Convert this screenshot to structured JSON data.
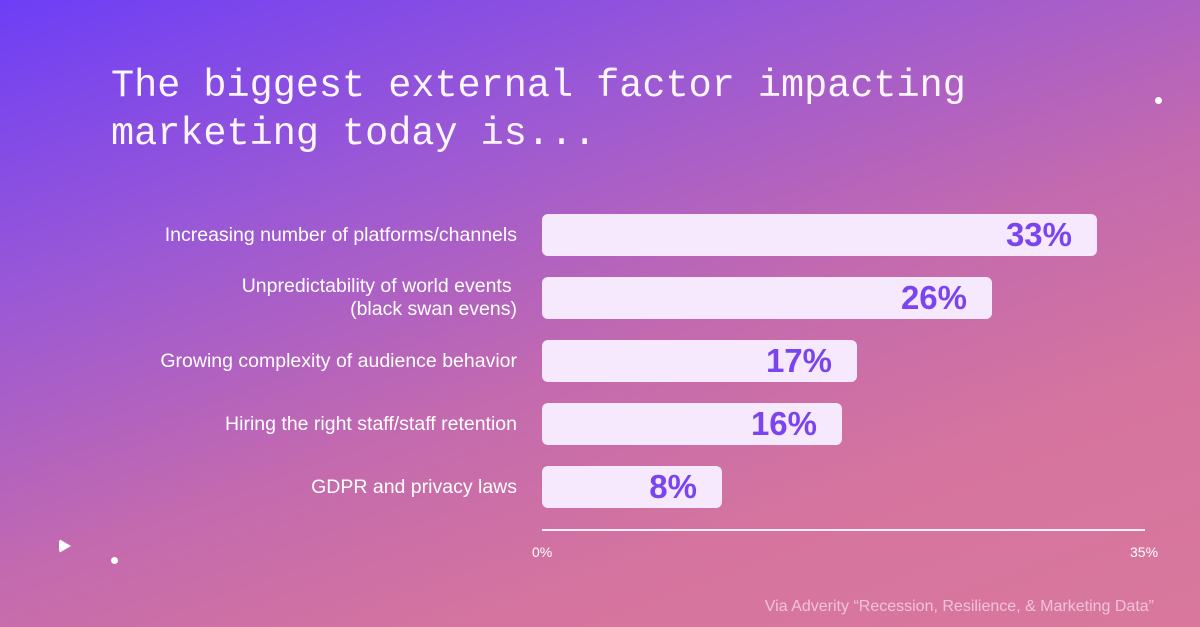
{
  "chart_data": {
    "type": "bar",
    "orientation": "horizontal",
    "title": "The biggest external factor impacting marketing today is...",
    "title_lines": [
      "The biggest external factor impacting",
      "marketing today is..."
    ],
    "categories": [
      "Increasing number of platforms/channels",
      "Unpredictability of world events \n(black swan evens)",
      "Growing complexity of audience behavior",
      "Hiring the right staff/staff retention",
      "GDPR and privacy laws"
    ],
    "values": [
      33,
      26,
      17,
      16,
      8
    ],
    "value_labels": [
      "33%",
      "26%",
      "17%",
      "16%",
      "8%"
    ],
    "xlim": [
      0,
      35
    ],
    "x_ticks": [
      "0%",
      "35%"
    ],
    "grid": false,
    "colors": {
      "bar": "#f7e9fd",
      "value_text": "#7a45ef",
      "background_top": "#6d3ef6",
      "background_bottom": "#d9789c"
    }
  },
  "source": "Via Adverity “Recession, Resilience, & Marketing Data”"
}
